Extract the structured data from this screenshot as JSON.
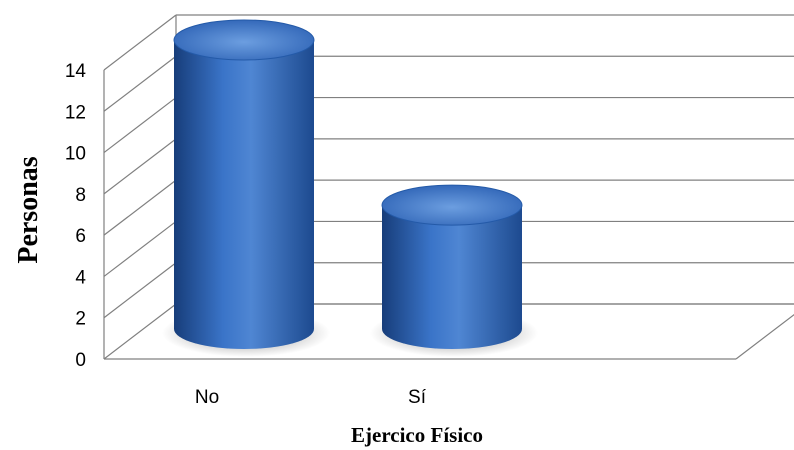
{
  "chart_data": {
    "type": "bar",
    "style": "3d-cylinder",
    "categories": [
      "No",
      "Sí"
    ],
    "values": [
      14,
      6
    ],
    "xlabel": "Ejercico Físico",
    "ylabel": "Personas",
    "ylim": [
      0,
      14
    ],
    "yticks": [
      "0",
      "2",
      "4",
      "6",
      "8",
      "10",
      "12",
      "14"
    ],
    "grid": true,
    "legend": "none",
    "colors": {
      "bar": "#2e63b4",
      "bar_light": "#5a8fd8",
      "bar_dark": "#173d7a",
      "grid": "#808080"
    }
  }
}
